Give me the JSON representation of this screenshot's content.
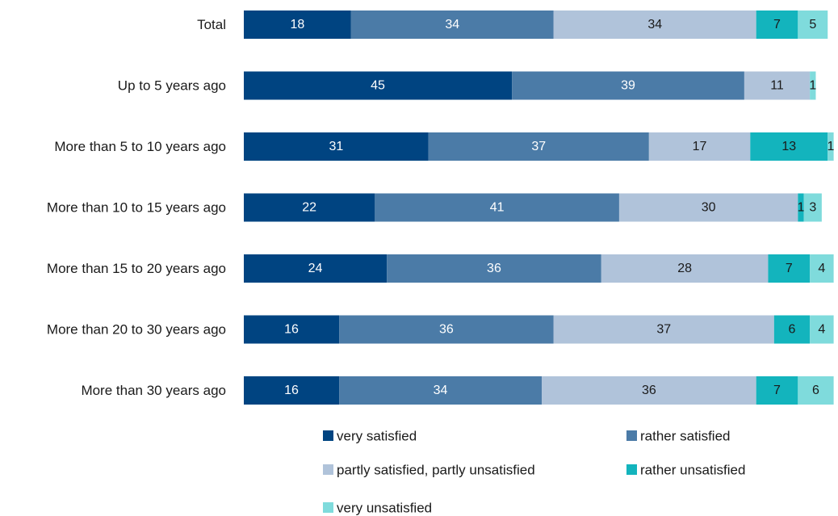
{
  "chart_data": {
    "type": "bar",
    "orientation": "horizontal",
    "stacked": true,
    "title": "",
    "xlabel": "",
    "ylabel": "",
    "xlim": [
      0,
      100
    ],
    "grid": false,
    "legend_position": "bottom",
    "categories": [
      "Total",
      "Up to 5 years ago",
      "More than 5 to 10 years ago",
      "More than 10 to 15 years ago",
      "More than 15 to 20 years ago",
      "More than 20 to 30 years ago",
      "More than 30 years ago"
    ],
    "series": [
      {
        "name": "very satisfied",
        "color": "#004481",
        "label_color": "#ffffff",
        "values": [
          18,
          45,
          31,
          22,
          24,
          16,
          16
        ]
      },
      {
        "name": "rather satisfied",
        "color": "#4b7ba7",
        "label_color": "#ffffff",
        "values": [
          34,
          39,
          37,
          41,
          36,
          36,
          34
        ]
      },
      {
        "name": "partly satisfied, partly unsatisfied",
        "color": "#b0c3da",
        "label_color": "#1a1a1a",
        "values": [
          34,
          11,
          17,
          30,
          28,
          37,
          36
        ]
      },
      {
        "name": "rather unsatisfied",
        "color": "#13b4bd",
        "label_color": "#1a1a1a",
        "values": [
          7,
          0,
          13,
          1,
          7,
          6,
          7
        ]
      },
      {
        "name": "very unsatisfied",
        "color": "#7fdbdc",
        "label_color": "#1a1a1a",
        "values": [
          5,
          1,
          1,
          3,
          4,
          4,
          6
        ]
      }
    ]
  }
}
